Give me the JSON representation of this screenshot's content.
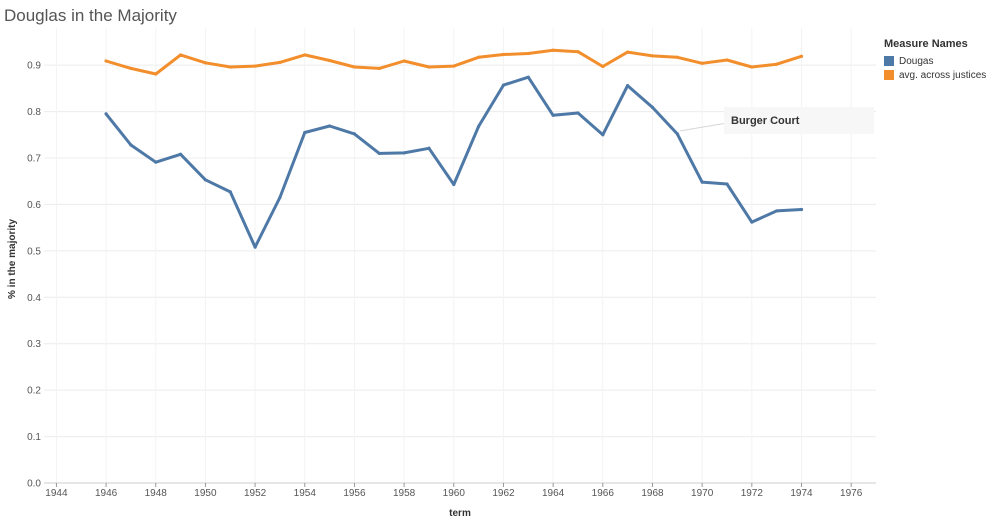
{
  "chart_data": {
    "type": "line",
    "title": "Douglas in the Majority",
    "xlabel": "term",
    "ylabel": "% in the majority",
    "xlim": [
      1943.5,
      1977
    ],
    "ylim": [
      0,
      0.98
    ],
    "x_ticks": [
      "1944",
      "1946",
      "1948",
      "1950",
      "1952",
      "1954",
      "1956",
      "1958",
      "1960",
      "1962",
      "1964",
      "1966",
      "1968",
      "1970",
      "1972",
      "1974",
      "1976"
    ],
    "y_ticks": [
      "0.0",
      "0.1",
      "0.2",
      "0.3",
      "0.4",
      "0.5",
      "0.6",
      "0.7",
      "0.8",
      "0.9"
    ],
    "legend_title": "Measure Names",
    "x": [
      1946,
      1947,
      1948,
      1949,
      1950,
      1951,
      1952,
      1953,
      1954,
      1955,
      1956,
      1957,
      1958,
      1959,
      1960,
      1961,
      1962,
      1963,
      1964,
      1965,
      1966,
      1967,
      1968,
      1969,
      1970,
      1971,
      1972,
      1973,
      1974
    ],
    "series": [
      {
        "name": "Dougas",
        "color": "#4e79a7",
        "values": [
          0.795,
          0.728,
          0.691,
          0.708,
          0.653,
          0.627,
          0.508,
          0.615,
          0.755,
          0.769,
          0.752,
          0.71,
          0.711,
          0.721,
          0.643,
          0.768,
          0.857,
          0.874,
          0.792,
          0.797,
          0.75,
          0.856,
          0.809,
          0.752,
          0.648,
          0.644,
          0.562,
          0.586,
          0.589
        ]
      },
      {
        "name": "avg. across justices",
        "color": "#f28e2b",
        "values": [
          0.909,
          0.893,
          0.881,
          0.922,
          0.905,
          0.896,
          0.898,
          0.906,
          0.922,
          0.91,
          0.896,
          0.893,
          0.909,
          0.896,
          0.898,
          0.917,
          0.923,
          0.925,
          0.932,
          0.929,
          0.897,
          0.928,
          0.92,
          0.917,
          0.904,
          0.911,
          0.896,
          0.902,
          0.919
        ]
      }
    ],
    "annotations": [
      {
        "text": "Burger Court",
        "x": 1969,
        "y": 0.752
      }
    ]
  }
}
